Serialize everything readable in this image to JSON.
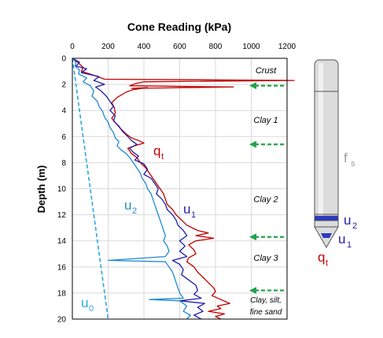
{
  "chart_data": {
    "type": "line",
    "title": "Cone Reading (kPa)",
    "ylabel": "Depth (m)",
    "xlim": [
      0,
      1200
    ],
    "ylim": [
      0,
      20
    ],
    "x_ticks": [
      "0",
      "200",
      "400",
      "600",
      "800",
      "1000",
      "1200"
    ],
    "y_ticks": [
      "0",
      "2",
      "4",
      "6",
      "8",
      "10",
      "12",
      "14",
      "16",
      "18",
      "20"
    ],
    "grid": true,
    "zones": [
      {
        "label": "Crust",
        "depth": 0.9
      },
      {
        "label": "Clay 1",
        "depth": 4.7
      },
      {
        "label": "Clay 2",
        "depth": 10.8
      },
      {
        "label": "Clay 3",
        "depth": 15.3
      },
      {
        "label": "Clay, silt,",
        "depth": 18.5
      },
      {
        "label": "fine sand",
        "depth": 19.4
      }
    ],
    "arrows_depth": [
      2.1,
      6.6,
      13.7,
      17.8
    ],
    "series": [
      {
        "key": "qt",
        "color": "#c00000",
        "label_main": "q",
        "label_sub": "t",
        "label_pos": [
          3.0,
          7.0
        ],
        "points": [
          [
            0,
            0
          ],
          [
            30,
            0.3
          ],
          [
            60,
            0.7
          ],
          [
            50,
            1.0
          ],
          [
            120,
            1.3
          ],
          [
            180,
            1.6
          ],
          [
            1250,
            1.7
          ],
          [
            400,
            1.8
          ],
          [
            350,
            1.95
          ],
          [
            320,
            2.1
          ],
          [
            900,
            2.2
          ],
          [
            330,
            2.3
          ],
          [
            420,
            2.25
          ],
          [
            340,
            2.4
          ],
          [
            300,
            2.6
          ],
          [
            250,
            3.0
          ],
          [
            220,
            3.4
          ],
          [
            235,
            3.8
          ],
          [
            240,
            4.2
          ],
          [
            220,
            4.6
          ],
          [
            245,
            5.0
          ],
          [
            270,
            5.4
          ],
          [
            300,
            5.8
          ],
          [
            330,
            6.1
          ],
          [
            370,
            6.3
          ],
          [
            400,
            6.5
          ],
          [
            350,
            6.7
          ],
          [
            310,
            6.9
          ],
          [
            330,
            7.3
          ],
          [
            360,
            7.6
          ],
          [
            380,
            8.0
          ],
          [
            410,
            8.4
          ],
          [
            430,
            8.8
          ],
          [
            450,
            9.2
          ],
          [
            470,
            9.6
          ],
          [
            490,
            10.0
          ],
          [
            510,
            10.4
          ],
          [
            520,
            10.8
          ],
          [
            530,
            11.2
          ],
          [
            560,
            11.6
          ],
          [
            580,
            12.0
          ],
          [
            610,
            12.4
          ],
          [
            640,
            12.8
          ],
          [
            700,
            13.2
          ],
          [
            760,
            13.4
          ],
          [
            690,
            13.6
          ],
          [
            790,
            13.8
          ],
          [
            690,
            14.0
          ],
          [
            650,
            14.3
          ],
          [
            680,
            14.7
          ],
          [
            690,
            15.0
          ],
          [
            650,
            15.3
          ],
          [
            640,
            15.6
          ],
          [
            680,
            16.0
          ],
          [
            700,
            16.4
          ],
          [
            730,
            16.8
          ],
          [
            760,
            17.2
          ],
          [
            790,
            17.6
          ],
          [
            800,
            17.9
          ],
          [
            780,
            18.2
          ],
          [
            830,
            18.5
          ],
          [
            880,
            18.8
          ],
          [
            810,
            19.0
          ],
          [
            830,
            19.2
          ],
          [
            760,
            19.4
          ],
          [
            850,
            19.6
          ],
          [
            800,
            19.8
          ],
          [
            830,
            20.0
          ]
        ]
      },
      {
        "key": "u1",
        "color": "#1f1fa8",
        "label_main": "u",
        "label_sub": "1",
        "label_pos": [
          9.5,
          11.8
        ],
        "points": [
          [
            0,
            0
          ],
          [
            40,
            0.3
          ],
          [
            20,
            0.6
          ],
          [
            80,
            0.8
          ],
          [
            50,
            1.1
          ],
          [
            150,
            1.4
          ],
          [
            120,
            1.7
          ],
          [
            180,
            2.0
          ],
          [
            130,
            2.2
          ],
          [
            160,
            2.5
          ],
          [
            190,
            2.9
          ],
          [
            210,
            3.3
          ],
          [
            230,
            3.7
          ],
          [
            210,
            4.0
          ],
          [
            240,
            4.4
          ],
          [
            230,
            4.8
          ],
          [
            260,
            5.2
          ],
          [
            280,
            5.6
          ],
          [
            310,
            6.0
          ],
          [
            330,
            6.3
          ],
          [
            360,
            6.6
          ],
          [
            320,
            6.9
          ],
          [
            340,
            7.2
          ],
          [
            370,
            7.5
          ],
          [
            350,
            7.8
          ],
          [
            400,
            8.1
          ],
          [
            420,
            8.5
          ],
          [
            400,
            8.9
          ],
          [
            440,
            9.2
          ],
          [
            460,
            9.6
          ],
          [
            480,
            10.0
          ],
          [
            470,
            10.4
          ],
          [
            500,
            10.8
          ],
          [
            520,
            11.2
          ],
          [
            530,
            11.6
          ],
          [
            560,
            12.0
          ],
          [
            580,
            12.4
          ],
          [
            590,
            12.8
          ],
          [
            620,
            13.2
          ],
          [
            640,
            13.6
          ],
          [
            600,
            14.0
          ],
          [
            630,
            14.4
          ],
          [
            600,
            14.8
          ],
          [
            640,
            15.2
          ],
          [
            560,
            15.5
          ],
          [
            600,
            15.8
          ],
          [
            620,
            16.2
          ],
          [
            610,
            16.6
          ],
          [
            650,
            17.0
          ],
          [
            690,
            17.4
          ],
          [
            700,
            17.8
          ],
          [
            680,
            18.1
          ],
          [
            720,
            18.4
          ],
          [
            600,
            18.6
          ],
          [
            740,
            18.8
          ],
          [
            700,
            19.1
          ],
          [
            730,
            19.4
          ],
          [
            680,
            19.7
          ],
          [
            720,
            20.0
          ]
        ]
      },
      {
        "key": "u2",
        "color": "#1f8ad0",
        "label_main": "u",
        "label_sub": "2",
        "label_pos": [
          9.0,
          11.5
        ],
        "points": [
          [
            0,
            0
          ],
          [
            20,
            0.3
          ],
          [
            15,
            0.6
          ],
          [
            40,
            0.9
          ],
          [
            35,
            1.2
          ],
          [
            80,
            1.5
          ],
          [
            60,
            1.8
          ],
          [
            100,
            2.1
          ],
          [
            120,
            2.5
          ],
          [
            110,
            2.9
          ],
          [
            140,
            3.3
          ],
          [
            150,
            3.7
          ],
          [
            170,
            4.1
          ],
          [
            180,
            4.5
          ],
          [
            200,
            4.9
          ],
          [
            210,
            5.3
          ],
          [
            230,
            5.7
          ],
          [
            240,
            6.1
          ],
          [
            260,
            6.4
          ],
          [
            250,
            6.7
          ],
          [
            270,
            7.0
          ],
          [
            300,
            7.3
          ],
          [
            320,
            7.6
          ],
          [
            340,
            8.0
          ],
          [
            360,
            8.4
          ],
          [
            380,
            8.8
          ],
          [
            390,
            9.2
          ],
          [
            410,
            9.6
          ],
          [
            420,
            10.0
          ],
          [
            440,
            10.4
          ],
          [
            450,
            10.8
          ],
          [
            460,
            11.2
          ],
          [
            470,
            11.6
          ],
          [
            480,
            12.0
          ],
          [
            490,
            12.4
          ],
          [
            500,
            12.8
          ],
          [
            510,
            13.2
          ],
          [
            520,
            13.6
          ],
          [
            510,
            14.0
          ],
          [
            530,
            14.4
          ],
          [
            540,
            14.8
          ],
          [
            520,
            15.2
          ],
          [
            200,
            15.5
          ],
          [
            520,
            15.6
          ],
          [
            540,
            16.0
          ],
          [
            560,
            16.4
          ],
          [
            570,
            16.8
          ],
          [
            580,
            17.2
          ],
          [
            590,
            17.6
          ],
          [
            600,
            18.0
          ],
          [
            620,
            18.4
          ],
          [
            430,
            18.5
          ],
          [
            600,
            18.6
          ],
          [
            640,
            19.0
          ],
          [
            620,
            19.4
          ],
          [
            660,
            19.7
          ],
          [
            640,
            20.0
          ]
        ]
      },
      {
        "key": "u0",
        "color": "#2aa7de",
        "dashed": true,
        "label_main": "u",
        "label_sub": "0",
        "label_pos": [
          40,
          18.7
        ],
        "points": [
          [
            0,
            0
          ],
          [
            200,
            20
          ]
        ]
      }
    ]
  },
  "probe": {
    "fs_main": "f",
    "fs_sub": "s",
    "fs_color": "#9a9a9a",
    "u2_main": "u",
    "u2_sub": "2",
    "u2_color": "#1f1fa8",
    "u1_main": "u",
    "u1_sub": "1",
    "u1_color": "#1f1fa8",
    "qt_main": "q",
    "qt_sub": "t",
    "qt_color": "#c00000"
  }
}
